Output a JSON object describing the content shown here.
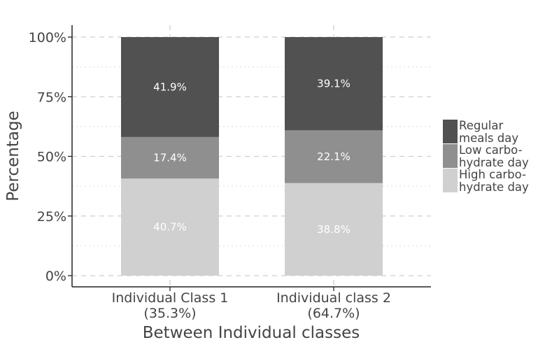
{
  "chart_data": {
    "type": "bar",
    "stacked": true,
    "percent": true,
    "xlabel": "Between Individual classes",
    "ylabel": "Percentage",
    "ylim": [
      0,
      100
    ],
    "yticks": [
      "0%",
      "25%",
      "50%",
      "75%",
      "100%"
    ],
    "ytick_values": [
      0,
      25,
      50,
      75,
      100
    ],
    "categories": [
      [
        "Individual Class 1",
        "(35.3%)"
      ],
      [
        "Individual class 2",
        "(64.7%)"
      ]
    ],
    "series": [
      {
        "name": [
          "High carbo-",
          "hydrate day"
        ],
        "color": "#d0d0d0",
        "values": [
          40.7,
          38.8
        ],
        "labels": [
          "40.7%",
          "38.8%"
        ]
      },
      {
        "name": [
          "Low carbo-",
          "hydrate day"
        ],
        "color": "#8f8f8f",
        "values": [
          17.4,
          22.1
        ],
        "labels": [
          "17.4%",
          "22.1%"
        ]
      },
      {
        "name": [
          "Regular",
          "meals day"
        ],
        "color": "#515151",
        "values": [
          41.9,
          39.1
        ],
        "labels": [
          "41.9%",
          "39.1%"
        ]
      }
    ],
    "grid": true,
    "legend_position": "right"
  }
}
